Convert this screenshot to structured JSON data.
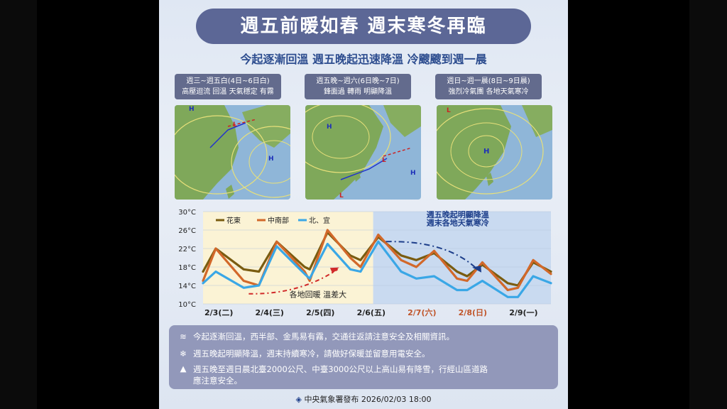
{
  "title": "週五前暖如春  週末寒冬再臨",
  "subtitle": "今起逐漸回溫 週五晚起迅速降溫 冷颼颼到週一晨",
  "panels": [
    {
      "period": "週三~週五白(4日~6日白)",
      "desc": "高壓迴流 回溫 天氣穩定 有霧"
    },
    {
      "period": "週五晚~週六(6日晚~7日)",
      "desc": "鋒面過 轉雨 明顯降溫"
    },
    {
      "period": "週日~週一晨(8日~9日晨)",
      "desc": "強烈冷氣團 各地天氣寒冷"
    }
  ],
  "colors": {
    "title_bg": "#5c6796",
    "hualien": "#7a5c10",
    "central_south": "#d2682a",
    "north_yilan": "#3aa7e6",
    "weekend_highlight": "#c0552a",
    "warm_zone": "#fbf3d5",
    "cold_zone": "#c9daf0"
  },
  "chart_data": {
    "type": "line",
    "yticks": [
      "30°C",
      "26°C",
      "22°C",
      "18°C",
      "14°C",
      "10°C"
    ],
    "ylim": [
      10,
      30
    ],
    "xlim": [
      0,
      6.85
    ],
    "categories": [
      "2/3(二)",
      "2/4(三)",
      "2/5(四)",
      "2/6(五)",
      "2/7(六)",
      "2/8(日)",
      "2/9(一)"
    ],
    "weekend_categories": [
      4,
      5
    ],
    "warm_until_x": 3.35,
    "series": [
      {
        "name": "花東",
        "color_key": "hualien",
        "points": [
          [
            0,
            17
          ],
          [
            0.25,
            22
          ],
          [
            0.8,
            17.5
          ],
          [
            1.1,
            17
          ],
          [
            1.45,
            23.5
          ],
          [
            2,
            18
          ],
          [
            2.1,
            17.5
          ],
          [
            2.45,
            25.5
          ],
          [
            2.9,
            20.5
          ],
          [
            3.1,
            19.5
          ],
          [
            3.45,
            24.5
          ],
          [
            3.9,
            20.5
          ],
          [
            4.2,
            19.5
          ],
          [
            4.55,
            21
          ],
          [
            5.0,
            17
          ],
          [
            5.2,
            16
          ],
          [
            5.5,
            18.5
          ],
          [
            6.0,
            14.5
          ],
          [
            6.2,
            14
          ],
          [
            6.5,
            19
          ],
          [
            6.85,
            17
          ]
        ]
      },
      {
        "name": "中南部",
        "color_key": "central_south",
        "points": [
          [
            0,
            15
          ],
          [
            0.25,
            22
          ],
          [
            0.8,
            15
          ],
          [
            1.1,
            14
          ],
          [
            1.45,
            23.5
          ],
          [
            2,
            17
          ],
          [
            2.1,
            15
          ],
          [
            2.45,
            26
          ],
          [
            2.9,
            20
          ],
          [
            3.1,
            18
          ],
          [
            3.45,
            25
          ],
          [
            3.9,
            19.5
          ],
          [
            4.2,
            18
          ],
          [
            4.55,
            21.5
          ],
          [
            5.0,
            15.5
          ],
          [
            5.2,
            15
          ],
          [
            5.5,
            19
          ],
          [
            6.0,
            13
          ],
          [
            6.2,
            13.5
          ],
          [
            6.5,
            19.5
          ],
          [
            6.85,
            16.5
          ]
        ]
      },
      {
        "name": "北、宜",
        "color_key": "north_yilan",
        "points": [
          [
            0,
            14.5
          ],
          [
            0.25,
            17
          ],
          [
            0.8,
            13.5
          ],
          [
            1.1,
            14
          ],
          [
            1.45,
            22.5
          ],
          [
            2,
            16.5
          ],
          [
            2.1,
            15.5
          ],
          [
            2.45,
            23
          ],
          [
            2.9,
            17.5
          ],
          [
            3.1,
            17
          ],
          [
            3.45,
            23.5
          ],
          [
            3.9,
            17
          ],
          [
            4.2,
            15.5
          ],
          [
            4.55,
            16
          ],
          [
            5.0,
            13
          ],
          [
            5.2,
            13
          ],
          [
            5.5,
            15
          ],
          [
            6.0,
            11.5
          ],
          [
            6.2,
            11.5
          ],
          [
            6.5,
            16
          ],
          [
            6.85,
            14.5
          ]
        ]
      }
    ],
    "annotations": [
      {
        "text": "週五晚起明顯降溫",
        "x": 4.4,
        "y": 28.8
      },
      {
        "text": "週末各地天氣寒冷",
        "x": 4.4,
        "y": 27
      },
      {
        "text": "各地回暖 溫差大",
        "x": 1.7,
        "y": 11.5
      }
    ]
  },
  "info": [
    {
      "icon": "fog-icon",
      "text": "今起逐漸回溫，西半部、金馬易有霧，交通往返請注意安全及相關資訊。"
    },
    {
      "icon": "snowflake-icon",
      "text": "週五晚起明顯降溫，週末持續寒冷，請做好保暖並留意用電安全。"
    },
    {
      "icon": "mountain-icon",
      "text_line1": "週五晚至週日晨北臺2000公尺、中臺3000公尺以上高山易有降雪，行經山區道路",
      "text_line2": "應注意安全。"
    }
  ],
  "footer": "中央氣象署發布 2026/02/03 18:00"
}
